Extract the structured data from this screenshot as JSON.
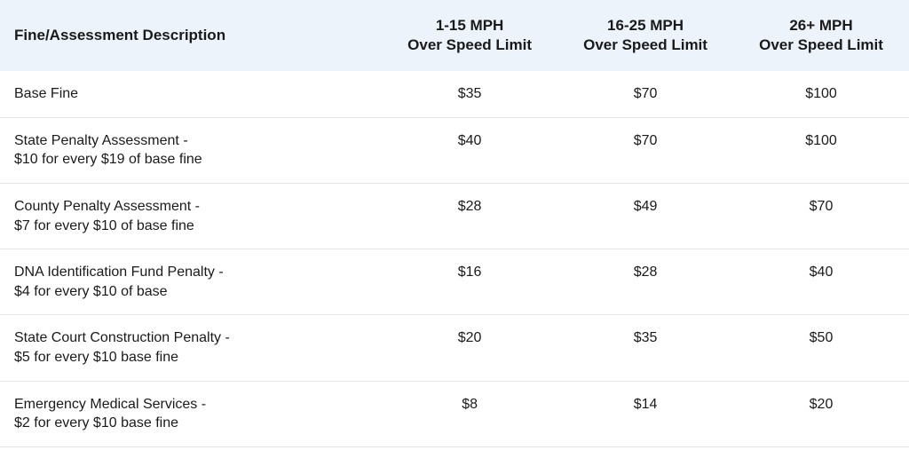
{
  "table": {
    "type": "table",
    "header_background": "#ecf3fa",
    "border_color": "#e5e5e5",
    "text_color": "#1a1a1a",
    "columns": [
      {
        "label_line1": "Fine/Assessment Description",
        "label_line2": "",
        "align": "left",
        "width_pct": 42
      },
      {
        "label_line1": "1-15 MPH",
        "label_line2": "Over Speed Limit",
        "align": "center",
        "width_pct": 19.33
      },
      {
        "label_line1": "16-25 MPH",
        "label_line2": "Over Speed Limit",
        "align": "center",
        "width_pct": 19.33
      },
      {
        "label_line1": "26+ MPH",
        "label_line2": "Over Speed Limit",
        "align": "center",
        "width_pct": 19.33
      }
    ],
    "rows": [
      {
        "desc_line1": "Base Fine",
        "desc_line2": "",
        "col1": "$35",
        "col2": "$70",
        "col3": "$100"
      },
      {
        "desc_line1": "State Penalty Assessment -",
        "desc_line2": "$10 for every $19 of base fine",
        "col1": "$40",
        "col2": "$70",
        "col3": "$100"
      },
      {
        "desc_line1": "County Penalty Assessment -",
        "desc_line2": "$7 for every $10 of base fine",
        "col1": "$28",
        "col2": "$49",
        "col3": "$70"
      },
      {
        "desc_line1": "DNA Identification Fund Penalty -",
        "desc_line2": "$4 for every $10 of base",
        "col1": "$16",
        "col2": "$28",
        "col3": "$40"
      },
      {
        "desc_line1": "State Court Construction Penalty -",
        "desc_line2": "$5 for every $10 base fine",
        "col1": "$20",
        "col2": "$35",
        "col3": "$50"
      },
      {
        "desc_line1": "Emergency Medical Services -",
        "desc_line2": "$2 for every $10 base fine",
        "col1": "$8",
        "col2": "$14",
        "col3": "$20"
      }
    ]
  }
}
